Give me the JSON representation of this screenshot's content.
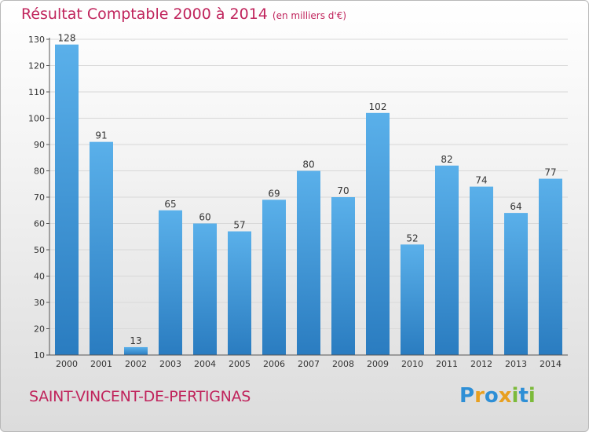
{
  "title": "Résultat Comptable 2000 à 2014",
  "unit": "(en milliers d'€)",
  "commune": "SAINT-VINCENT-DE-PERTIGNAS",
  "logo": {
    "text": "Proxiti",
    "letters": [
      {
        "ch": "P",
        "color": "#2e8fd6"
      },
      {
        "ch": "r",
        "color": "#e8a020"
      },
      {
        "ch": "o",
        "color": "#2e8fd6"
      },
      {
        "ch": "x",
        "color": "#e8a020"
      },
      {
        "ch": "i",
        "color": "#7cba3a"
      },
      {
        "ch": "t",
        "color": "#2e8fd6"
      },
      {
        "ch": "i",
        "color": "#7cba3a"
      }
    ]
  },
  "colors": {
    "accent": "#c0245c",
    "bar_light": "#5ab0ea",
    "bar_dark": "#2a7cc0",
    "grid": "#d8d8d8",
    "axis": "#555555"
  },
  "chart_data": {
    "type": "bar",
    "categories": [
      "2000",
      "2001",
      "2002",
      "2003",
      "2004",
      "2005",
      "2006",
      "2007",
      "2008",
      "2009",
      "2010",
      "2011",
      "2012",
      "2013",
      "2014"
    ],
    "values": [
      128,
      91,
      13,
      65,
      60,
      57,
      69,
      80,
      70,
      102,
      52,
      82,
      74,
      64,
      77
    ],
    "ylim": [
      10,
      130
    ],
    "yticks": [
      10,
      20,
      30,
      40,
      50,
      60,
      70,
      80,
      90,
      100,
      110,
      120,
      130
    ],
    "grid": true,
    "legend": "none",
    "data_labels": true
  }
}
